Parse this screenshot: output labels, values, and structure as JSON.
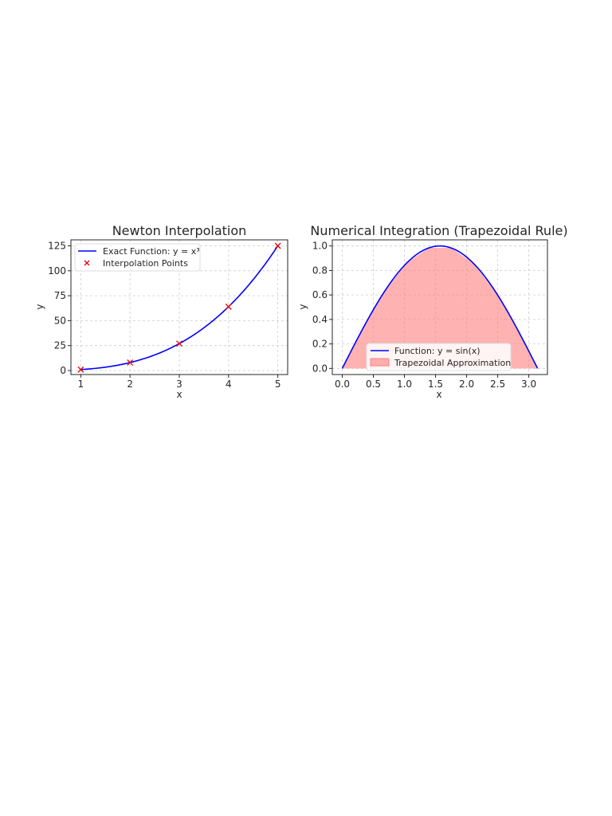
{
  "chart_data": [
    {
      "type": "line",
      "title": "Newton Interpolation",
      "xlabel": "x",
      "ylabel": "y",
      "xlim": [
        0.8,
        5.2
      ],
      "ylim": [
        -4,
        131
      ],
      "xticks": [
        1,
        2,
        3,
        4,
        5
      ],
      "yticks": [
        0,
        25,
        50,
        75,
        100,
        125
      ],
      "grid": true,
      "legend": {
        "placement": "top-left"
      },
      "series": [
        {
          "name": "Exact Function: y = x³",
          "kind": "line",
          "function": "x^3",
          "x_range": [
            1,
            5
          ],
          "color": "#0000ff"
        },
        {
          "name": "Interpolation Points",
          "kind": "scatter",
          "marker": "x",
          "color": "#e8000b",
          "x": [
            1,
            2,
            3,
            4,
            5
          ],
          "y": [
            1,
            8,
            27,
            64,
            125
          ]
        }
      ]
    },
    {
      "type": "area",
      "title": "Numerical Integration (Trapezoidal Rule)",
      "xlabel": "x",
      "ylabel": "y",
      "xlim": [
        -0.16,
        3.3
      ],
      "ylim": [
        -0.05,
        1.05
      ],
      "xticks": [
        0.0,
        0.5,
        1.0,
        1.5,
        2.0,
        2.5,
        3.0
      ],
      "yticks": [
        0.0,
        0.2,
        0.4,
        0.6,
        0.8,
        1.0
      ],
      "tick_decimals": 1,
      "grid": true,
      "legend": {
        "placement": "bottom-center"
      },
      "series": [
        {
          "name": "Function: y = sin(x)",
          "kind": "line",
          "function": "sin(x)",
          "x_range": [
            0,
            3.14159
          ],
          "color": "#0000ff"
        },
        {
          "name": "Trapezoidal Approximation",
          "kind": "area",
          "color": "#ff7f7f",
          "x": [
            0,
            0.349,
            0.698,
            1.047,
            1.396,
            1.745,
            2.094,
            2.443,
            2.793,
            3.142
          ],
          "y": [
            0,
            0.342,
            0.643,
            0.866,
            0.985,
            0.985,
            0.866,
            0.643,
            0.342,
            0
          ]
        }
      ]
    }
  ]
}
